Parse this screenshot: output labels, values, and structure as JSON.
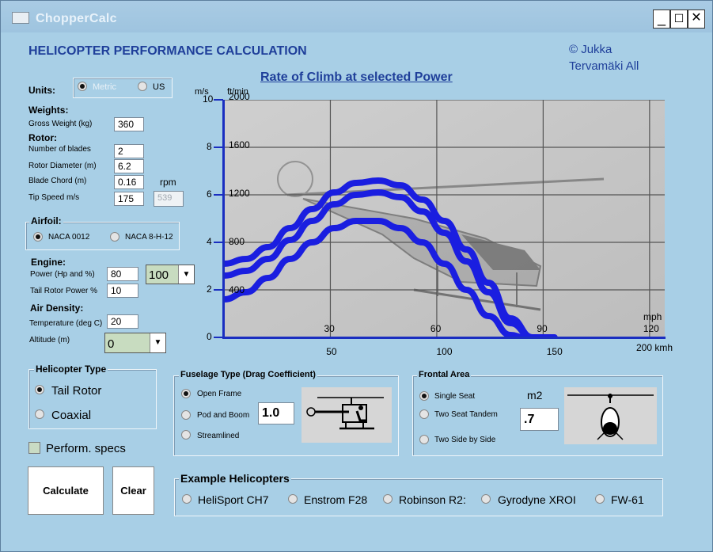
{
  "window": {
    "title": "ChopperCalc",
    "minimize": "_",
    "maximize": "☐",
    "close": "✕"
  },
  "header": {
    "heading": "HELICOPTER PERFORMANCE CALCULATION",
    "copyright_line1": "© Jukka",
    "copyright_line2": "Tervamäki All"
  },
  "units": {
    "label": "Units:",
    "metric": "Metric",
    "us": "US",
    "selected": "metric"
  },
  "weights": {
    "heading": "Weights:",
    "gross_label": "Gross Weight (kg)",
    "gross_value": "360"
  },
  "rotor": {
    "heading": "Rotor:",
    "blades_label": "Number of blades",
    "blades_value": "2",
    "diameter_label": "Rotor Diameter (m)",
    "diameter_value": "6.2",
    "chord_label": "Blade Chord (m)",
    "chord_value": "0.16",
    "rpm_label": "rpm",
    "tip_label": "Tip Speed m/s",
    "tip_value": "175",
    "rpm_value": "539"
  },
  "airfoil": {
    "heading": "Airfoil:",
    "opt1": "NACA 0012",
    "opt2": "NACA 8-H-12",
    "selected": "NACA 0012"
  },
  "engine": {
    "heading": "Engine:",
    "power_label": "Power (Hp and %)",
    "power_value": "80",
    "percent_value": "100",
    "dropdown_arrow": "▼",
    "tail_label": "Tail Rotor Power %",
    "tail_value": "10"
  },
  "air": {
    "heading": "Air Density:",
    "temp_label": "Temperature (deg C)",
    "temp_value": "20",
    "alt_label": "Altitude (m)",
    "alt_value": "0",
    "dropdown_arrow": "▼"
  },
  "heli_type": {
    "title": "Helicopter Type",
    "opt1": "Tail Rotor",
    "opt2": "Coaxial",
    "selected": "Tail Rotor"
  },
  "perform_specs": {
    "label": "Perform. specs",
    "checked": false
  },
  "buttons": {
    "calculate": "Calculate",
    "clear": "Clear"
  },
  "fuselage": {
    "title": "Fuselage Type (Drag Coefficient)",
    "opt1": "Open Frame",
    "opt2": "Pod and Boom",
    "opt3": "Streamlined",
    "selected": "Open Frame",
    "value": "1.0"
  },
  "frontal": {
    "title": "Frontal Area",
    "opt1": "Single Seat",
    "opt2": "Two Seat Tandem",
    "opt3": "Two Side by Side",
    "selected": "Single Seat",
    "unit": "m2",
    "value": ".7"
  },
  "examples": {
    "title": "Example Helicopters",
    "items": [
      "HeliSport CH7",
      "Enstrom F28",
      "Robinson R2:",
      "Gyrodyne XROI",
      "FW-61"
    ]
  },
  "chart_data": {
    "type": "line",
    "title": "Rate of Climb at selected Power",
    "y_left_unit": "m/s",
    "y_right_unit": "ft/min",
    "y_ticks_ms": [
      "0",
      "2",
      "4",
      "6",
      "8",
      "10"
    ],
    "y_ticks_ftmin": [
      "400",
      "800",
      "1200",
      "1600",
      "2000"
    ],
    "x_ticks_mph": [
      "30",
      "60",
      "90",
      "120"
    ],
    "x_unit_mph": "mph",
    "x_ticks_kmh": [
      "50",
      "100",
      "150"
    ],
    "x_unit_kmh": "200 kmh",
    "xlim_kmh": [
      0,
      200
    ],
    "ylim_ms": [
      0,
      10
    ],
    "line_color": "#1a1ee0",
    "series": [
      {
        "x": [
          0,
          10,
          20,
          30,
          40,
          50,
          60,
          70,
          80,
          90,
          100,
          110,
          120,
          130,
          140,
          150
        ],
        "y": [
          3.1,
          3.3,
          3.8,
          4.6,
          5.4,
          6.1,
          6.5,
          6.6,
          6.4,
          5.8,
          4.9,
          3.7,
          2.3,
          0.8,
          0,
          0
        ]
      },
      {
        "x": [
          0,
          10,
          20,
          30,
          40,
          50,
          60,
          70,
          80,
          90,
          100,
          110,
          120,
          130,
          140,
          148
        ],
        "y": [
          2.6,
          2.8,
          3.3,
          4.1,
          4.9,
          5.6,
          6.0,
          6.1,
          5.9,
          5.3,
          4.4,
          3.2,
          1.9,
          0.6,
          0,
          0
        ]
      },
      {
        "x": [
          0,
          10,
          20,
          30,
          40,
          50,
          60,
          70,
          80,
          90,
          100,
          110,
          120,
          130,
          136
        ],
        "y": [
          1.6,
          1.9,
          2.5,
          3.3,
          4.0,
          4.6,
          4.9,
          4.9,
          4.6,
          4.0,
          3.1,
          2.0,
          0.9,
          0.1,
          0
        ]
      }
    ]
  }
}
